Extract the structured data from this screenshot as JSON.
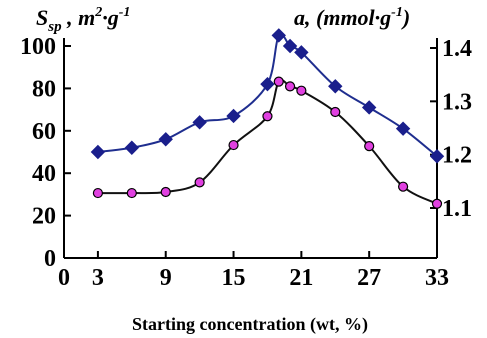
{
  "chart_data": {
    "type": "line",
    "xlabel": "Starting concentration (wt, %)",
    "ylabel_left": {
      "main": "S",
      "sub": "sp",
      "rest": " , m",
      "sup": "2",
      "tail": "·g",
      "sup2": "-1"
    },
    "ylabel_right": {
      "main": "a, (mmol·g",
      "sup": "-1",
      "tail": ")"
    },
    "x_ticks": [
      "0",
      "3",
      "9",
      "15",
      "21",
      "27",
      "33"
    ],
    "x_tick_values": [
      0,
      3,
      9,
      15,
      21,
      27,
      33
    ],
    "y_left_ticks": [
      "0",
      "20",
      "40",
      "60",
      "80",
      "100"
    ],
    "y_left_tick_values": [
      0,
      20,
      40,
      60,
      80,
      100
    ],
    "y_right_ticks": [
      "1.1",
      "1.2",
      "1.3",
      "1.4"
    ],
    "y_right_tick_values": [
      1.1,
      1.2,
      1.3,
      1.4
    ],
    "xlim": [
      0,
      33
    ],
    "ylim_left": [
      0,
      100
    ],
    "series": [
      {
        "axis": "left",
        "color": "#1f2e8f",
        "marker": "diamond",
        "marker_color": "#1a1f8c",
        "x": [
          3,
          6,
          9,
          12,
          15,
          18,
          19,
          20,
          21,
          24,
          27,
          30,
          33
        ],
        "values": [
          50,
          52,
          56,
          64,
          67,
          82,
          105,
          100,
          97,
          81,
          71,
          61,
          48
        ]
      },
      {
        "axis": "right",
        "color": "#111111",
        "marker": "circle",
        "marker_color": "#e040e0",
        "x": [
          3,
          6,
          9,
          12,
          15,
          18,
          19,
          20,
          21,
          24,
          27,
          30,
          33
        ],
        "values_right": [
          1.128,
          1.128,
          1.13,
          1.148,
          1.218,
          1.272,
          1.337,
          1.328,
          1.32,
          1.28,
          1.216,
          1.14,
          1.108
        ],
        "values": [
          40,
          40,
          41,
          45,
          59,
          72,
          89,
          86,
          84,
          77,
          62,
          42,
          34
        ]
      }
    ]
  }
}
